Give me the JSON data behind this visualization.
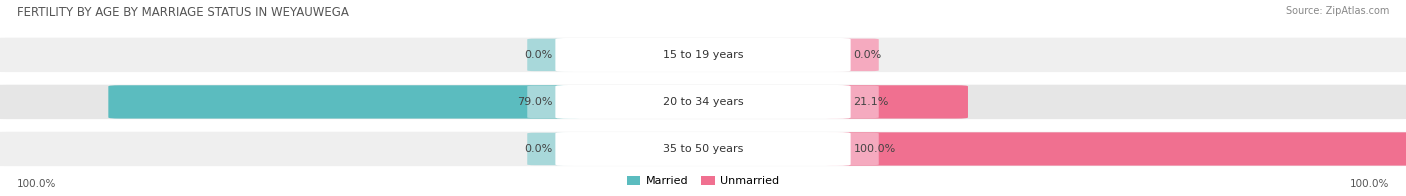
{
  "title": "FERTILITY BY AGE BY MARRIAGE STATUS IN WEYAUWEGA",
  "source": "Source: ZipAtlas.com",
  "categories": [
    "15 to 19 years",
    "20 to 34 years",
    "35 to 50 years"
  ],
  "married_values": [
    0.0,
    79.0,
    0.0
  ],
  "unmarried_values": [
    0.0,
    21.1,
    100.0
  ],
  "married_color": "#5bbcbf",
  "unmarried_color": "#f07090",
  "married_light_color": "#a8d8da",
  "unmarried_light_color": "#f5aabf",
  "row_bg_colors": [
    "#efefef",
    "#e6e6e6",
    "#efefef"
  ],
  "center_bg_color": "#ffffff",
  "title_fontsize": 8.5,
  "label_fontsize": 8,
  "tick_fontsize": 7.5,
  "source_fontsize": 7,
  "legend_fontsize": 8,
  "figsize": [
    14.06,
    1.96
  ],
  "dpi": 100
}
